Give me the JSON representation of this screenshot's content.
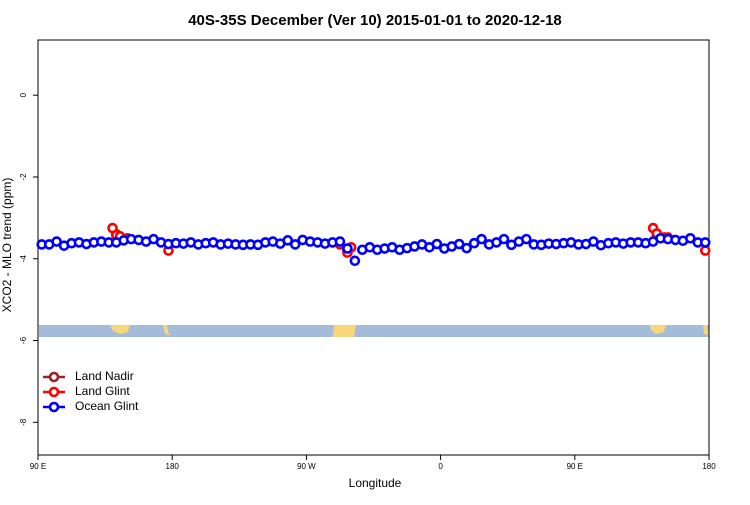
{
  "chart_data": {
    "type": "scatter",
    "title": "40S-35S December (Ver 10)   2015-01-01 to 2020-12-18",
    "x_label": "Longitude",
    "y_label": "XCO2 - MLO trend (ppm)",
    "xlim": [
      90,
      540
    ],
    "ylim": [
      -8.8,
      1.35
    ],
    "xticks": [
      {
        "value": 90,
        "label": "90 E"
      },
      180,
      {
        "value": 270,
        "label": "90 W"
      },
      {
        "value": 360,
        "label": "0"
      },
      {
        "value": 450,
        "label": "90 E"
      },
      {
        "value": 540,
        "label": "180"
      }
    ],
    "yticks": [
      0,
      -2,
      -4,
      -6,
      -8
    ],
    "legend": "bottomleft",
    "series": [
      {
        "name": "Land Nadir",
        "color": "#9b2226",
        "x": [
          142.5,
          297.5,
          505
        ],
        "values": [
          -3.4,
          -3.8,
          -3.4
        ]
      },
      {
        "name": "Land Glint",
        "color": "#ff0000",
        "x": [
          140,
          142.5,
          145,
          150,
          177.5,
          292.5,
          297.5,
          300,
          502.5,
          505,
          510,
          512.5,
          537.5
        ],
        "values": [
          -3.25,
          -3.42,
          -3.45,
          -3.5,
          -3.8,
          -3.65,
          -3.85,
          -3.72,
          -3.25,
          -3.38,
          -3.48,
          -3.48,
          -3.8
        ]
      },
      {
        "name": "Ocean Glint",
        "color": "#0000ff",
        "x": [
          92.5,
          97.5,
          102.5,
          107.5,
          112.5,
          117.5,
          122.5,
          127.5,
          132.5,
          137.5,
          142.5,
          147.5,
          152.5,
          157.5,
          162.5,
          167.5,
          172.5,
          177.5,
          182.5,
          187.5,
          192.5,
          197.5,
          202.5,
          207.5,
          212.5,
          217.5,
          222.5,
          227.5,
          232.5,
          237.5,
          242.5,
          247.5,
          252.5,
          257.5,
          262.5,
          267.5,
          272.5,
          277.5,
          282.5,
          287.5,
          292.5,
          297.5,
          302.5,
          307.5,
          312.5,
          317.5,
          322.5,
          327.5,
          332.5,
          337.5,
          342.5,
          347.5,
          352.5,
          357.5,
          362.5,
          367.5,
          372.5,
          377.5,
          382.5,
          387.5,
          392.5,
          397.5,
          402.5,
          407.5,
          412.5,
          417.5,
          422.5,
          427.5,
          432.5,
          437.5,
          442.5,
          447.5,
          452.5,
          457.5,
          462.5,
          467.5,
          472.5,
          477.5,
          482.5,
          487.5,
          492.5,
          497.5,
          502.5,
          507.5,
          512.5,
          517.5,
          522.5,
          527.5,
          532.5,
          537.5
        ],
        "values": [
          -3.65,
          -3.65,
          -3.58,
          -3.68,
          -3.62,
          -3.6,
          -3.64,
          -3.6,
          -3.58,
          -3.6,
          -3.6,
          -3.55,
          -3.52,
          -3.54,
          -3.58,
          -3.52,
          -3.6,
          -3.64,
          -3.62,
          -3.63,
          -3.6,
          -3.65,
          -3.62,
          -3.6,
          -3.65,
          -3.63,
          -3.65,
          -3.66,
          -3.65,
          -3.66,
          -3.6,
          -3.58,
          -3.63,
          -3.55,
          -3.65,
          -3.54,
          -3.58,
          -3.6,
          -3.63,
          -3.6,
          -3.58,
          -3.75,
          -4.05,
          -3.78,
          -3.72,
          -3.78,
          -3.75,
          -3.72,
          -3.78,
          -3.74,
          -3.7,
          -3.65,
          -3.72,
          -3.64,
          -3.75,
          -3.7,
          -3.64,
          -3.74,
          -3.62,
          -3.52,
          -3.65,
          -3.6,
          -3.52,
          -3.66,
          -3.58,
          -3.52,
          -3.65,
          -3.66,
          -3.63,
          -3.64,
          -3.62,
          -3.6,
          -3.65,
          -3.64,
          -3.58,
          -3.67,
          -3.62,
          -3.6,
          -3.63,
          -3.6,
          -3.6,
          -3.62,
          -3.58,
          -3.5,
          -3.52,
          -3.54,
          -3.56,
          -3.5,
          -3.6,
          -3.6
        ]
      }
    ]
  }
}
